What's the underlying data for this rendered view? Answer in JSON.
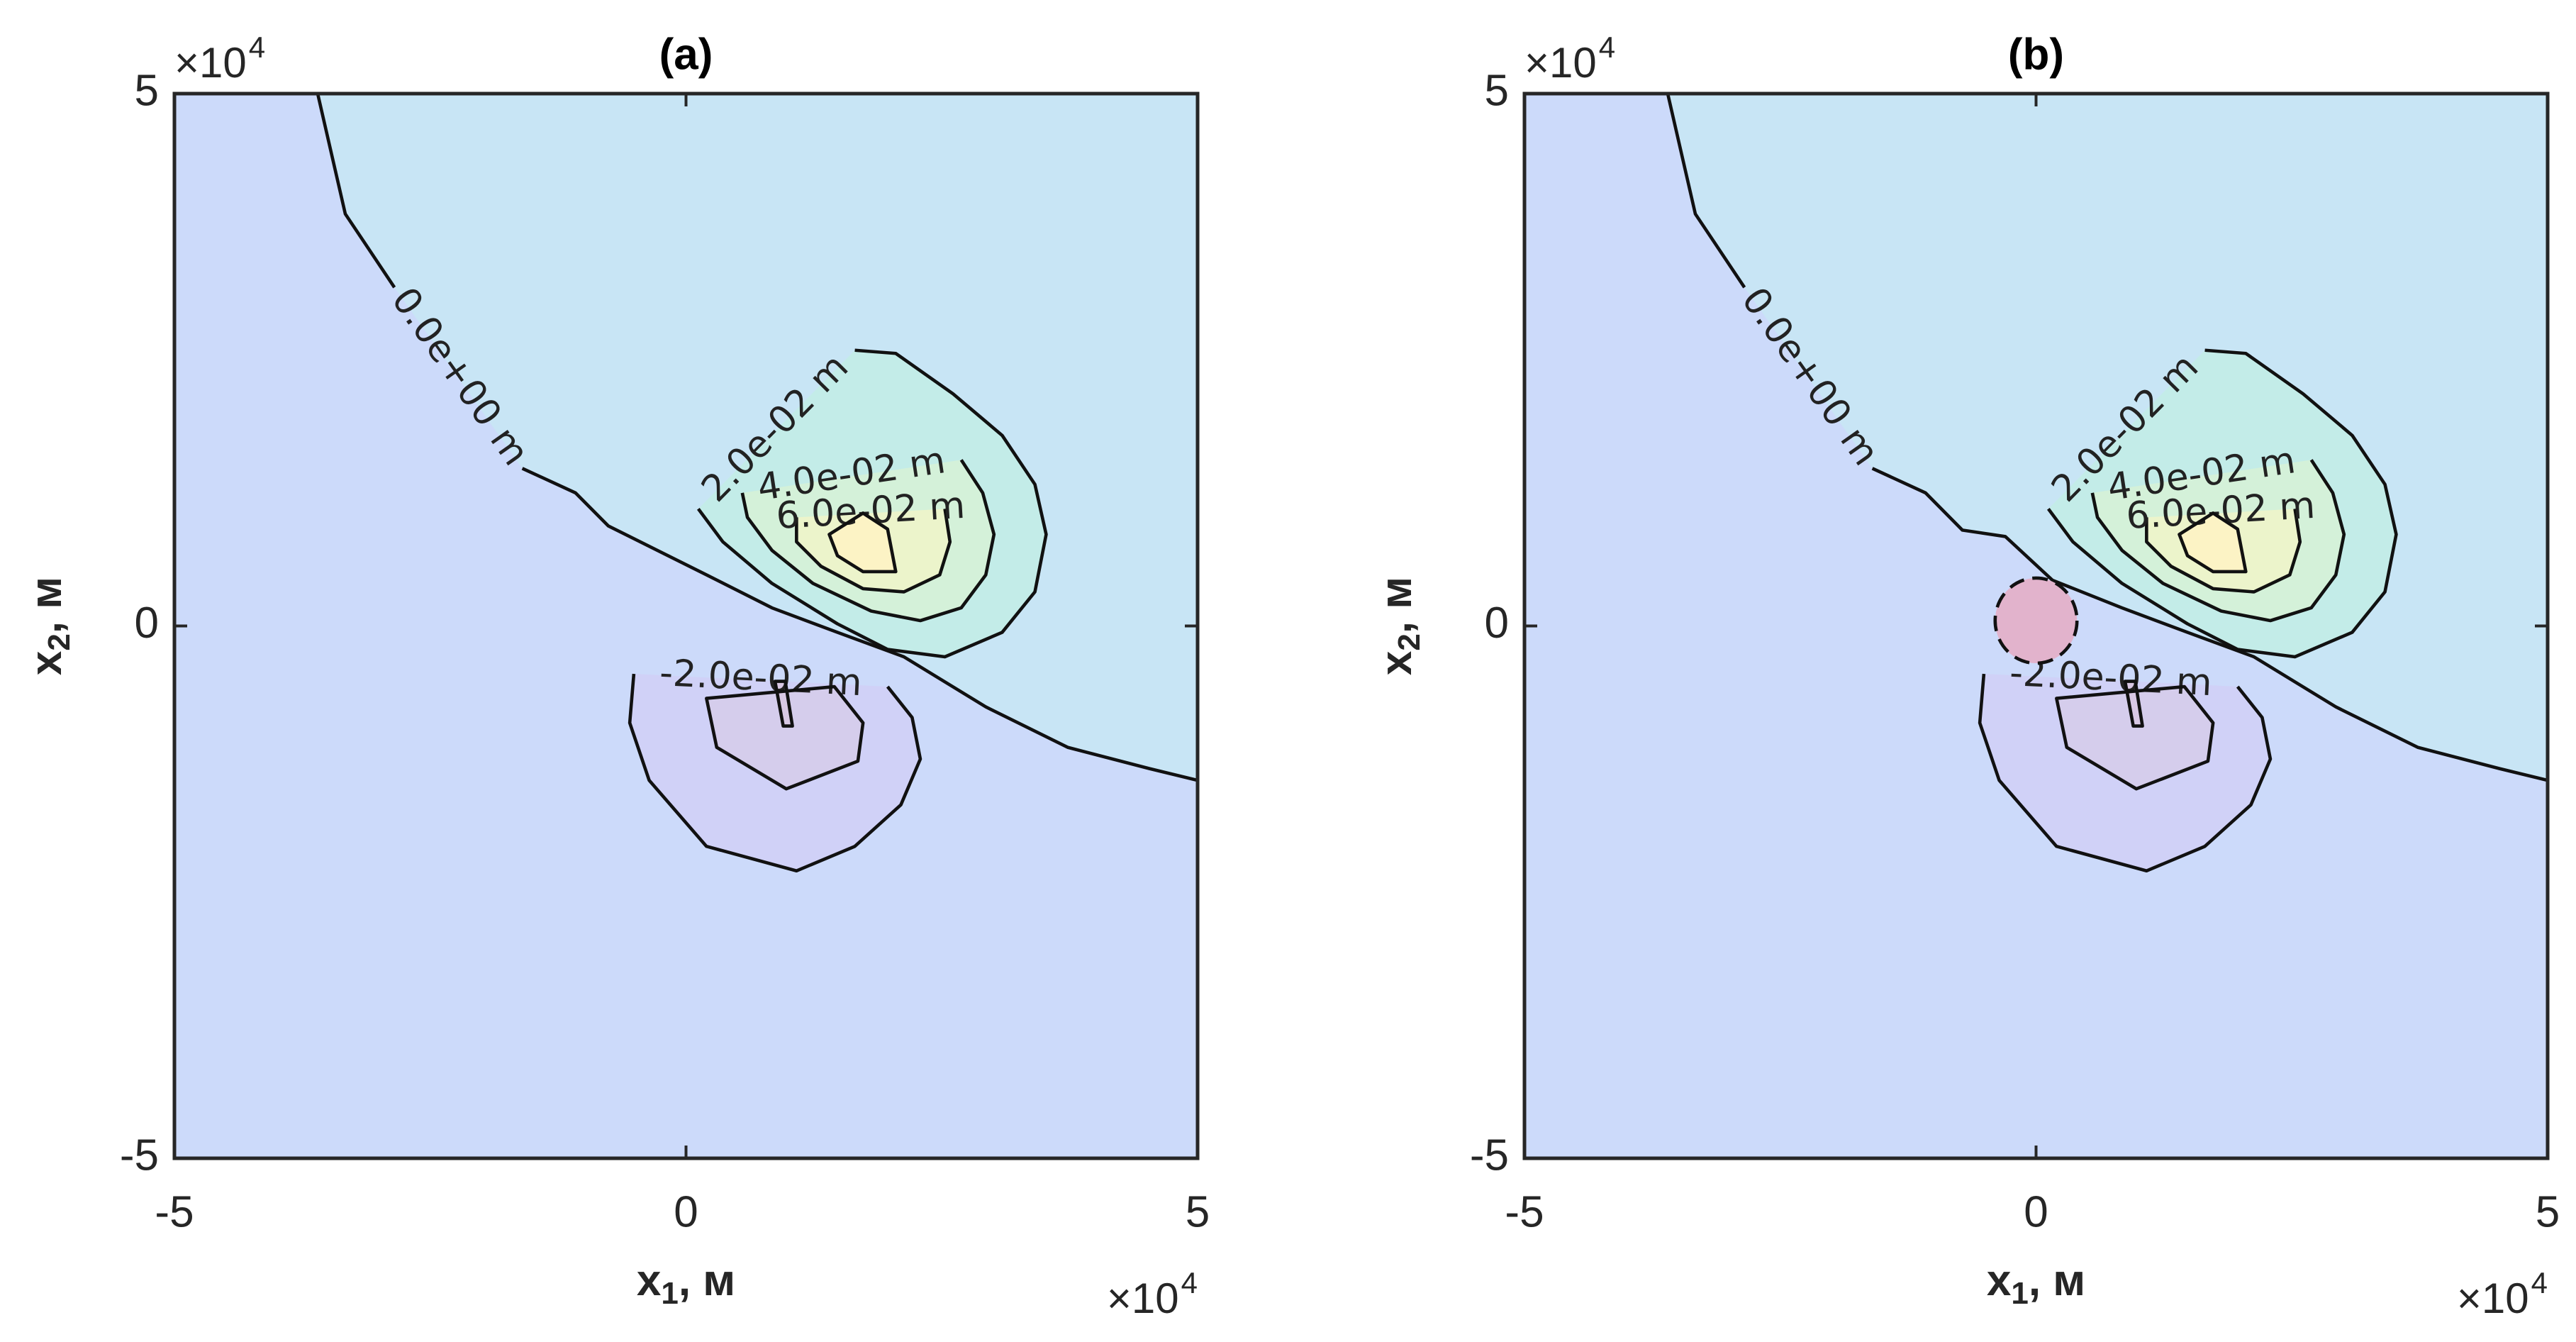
{
  "chart_data": [
    {
      "type": "contour",
      "title": "(a)",
      "xlabel": {
        "text": "x",
        "sub": "1",
        "rest": ", м"
      },
      "ylabel": {
        "text": "x",
        "sub": "2",
        "rest": ", м"
      },
      "x_multiplier": {
        "base": "×10",
        "power": "4"
      },
      "y_multiplier": {
        "base": "×10",
        "power": "4"
      },
      "xlim": [
        -50000,
        50000
      ],
      "ylim": [
        -50000,
        50000
      ],
      "xticks": [
        {
          "value": -50000,
          "label": "-5"
        },
        {
          "value": 0,
          "label": "0"
        },
        {
          "value": 50000,
          "label": "5"
        }
      ],
      "yticks": [
        {
          "value": -50000,
          "label": "-5"
        },
        {
          "value": 0,
          "label": "0"
        },
        {
          "value": 50000,
          "label": "5"
        }
      ],
      "background": "#ccdafa",
      "contours": [
        {
          "level": 0,
          "label": "0.0e+00 m",
          "shape": "open",
          "color": "#c8e5f5",
          "x": [
            -36000,
            -33300,
            -28500,
            null,
            -16000,
            -10800,
            -7600,
            -2800,
            2000,
            8400,
            14800,
            21300,
            29300,
            37300,
            45300,
            50000
          ],
          "y": [
            50000,
            38700,
            31800,
            null,
            14800,
            12500,
            9400,
            7100,
            4800,
            1700,
            -600,
            -2900,
            -7600,
            -11400,
            -13400,
            -14500
          ]
        },
        {
          "level": 0.02,
          "label": "2.0e-02 m",
          "shape": "loop",
          "color": "#c3ece8",
          "x": [
            16500,
            20500,
            26100,
            30900,
            34100,
            35200,
            34100,
            30900,
            25300,
            19700,
            14800,
            8400,
            3600,
            1200
          ],
          "y": [
            25900,
            25600,
            21800,
            17900,
            13300,
            8600,
            3200,
            -600,
            -2900,
            -2200,
            200,
            4000,
            7900,
            11000
          ]
        },
        {
          "level": 0.04,
          "label": "4.0e-02 m",
          "shape": "loop",
          "color": "#d4f1d9",
          "x": [
            26900,
            29000,
            30100,
            29300,
            26900,
            22900,
            18100,
            12400,
            8400,
            6000,
            5500
          ],
          "y": [
            15600,
            12500,
            8600,
            4800,
            1700,
            500,
            1400,
            4000,
            7100,
            10200,
            12500
          ]
        },
        {
          "level": 0.06,
          "label": "6.0e-02 m",
          "shape": "loop",
          "color": "#ecf4cb",
          "x": [
            25300,
            25800,
            24800,
            21300,
            17300,
            13200,
            10800,
            10800
          ],
          "y": [
            11000,
            7900,
            4800,
            3200,
            3500,
            5600,
            7900,
            10200
          ]
        },
        {
          "level": 0.08,
          "shape": "loop",
          "color": "#fcf3c5",
          "x": [
            14000,
            17300,
            19700,
            20500,
            17300,
            14800
          ],
          "y": [
            8600,
            10600,
            9100,
            5100,
            5100,
            6600
          ]
        },
        {
          "level": -0.02,
          "label": "-2.0e-02 m",
          "shape": "loop",
          "color": "#d0d1f7",
          "x": [
            19700,
            22100,
            22900,
            21000,
            16500,
            10800,
            2000,
            -3600,
            -5500,
            -5100
          ],
          "y": [
            -5700,
            -8600,
            -12500,
            -16800,
            -20700,
            -23000,
            -20700,
            -14500,
            -9100,
            -4500
          ]
        },
        {
          "level": -0.04,
          "shape": "loop",
          "color": "#d5cdec",
          "x": [
            2000,
            3000,
            9800,
            16800,
            17300,
            14500
          ],
          "y": [
            -6800,
            -11400,
            -15300,
            -12700,
            -9100,
            -5700
          ]
        },
        {
          "level": -0.06,
          "shape": "loop",
          "color": "#d8c8e4",
          "x": [
            8700,
            9700,
            10400,
            9500
          ],
          "y": [
            -5200,
            -5200,
            -9400,
            -9400
          ]
        }
      ]
    },
    {
      "type": "contour",
      "title": "(b)",
      "xlabel": {
        "text": "x",
        "sub": "1",
        "rest": ", м"
      },
      "ylabel": {
        "text": "x",
        "sub": "2",
        "rest": ", м"
      },
      "x_multiplier": {
        "base": "×10",
        "power": "4"
      },
      "y_multiplier": {
        "base": "×10",
        "power": "4"
      },
      "xlim": [
        -50000,
        50000
      ],
      "ylim": [
        -50000,
        50000
      ],
      "xticks": [
        {
          "value": -50000,
          "label": "-5"
        },
        {
          "value": 0,
          "label": "0"
        },
        {
          "value": 50000,
          "label": "5"
        }
      ],
      "yticks": [
        {
          "value": -50000,
          "label": "-5"
        },
        {
          "value": 0,
          "label": "0"
        },
        {
          "value": 50000,
          "label": "5"
        }
      ],
      "background": "#ccdafa",
      "contours": [
        {
          "level": 0,
          "label": "0.0e+00 m",
          "shape": "open",
          "color": "#c8e5f5",
          "x": [
            -36000,
            -33300,
            -28500,
            null,
            -16000,
            -10800,
            -7200,
            -3000,
            1600,
            8400,
            14800,
            21300,
            29300,
            37300,
            45300,
            50000
          ],
          "y": [
            50000,
            38700,
            31800,
            null,
            14800,
            12500,
            9000,
            8400,
            4300,
            1700,
            -600,
            -2900,
            -7600,
            -11400,
            -13400,
            -14500
          ]
        },
        {
          "level": 0.02,
          "label": "2.0e-02 m",
          "shape": "loop",
          "color": "#c3ece8",
          "x": [
            16500,
            20500,
            26100,
            30900,
            34100,
            35200,
            34100,
            30900,
            25300,
            19700,
            14800,
            8400,
            3600,
            1200
          ],
          "y": [
            25900,
            25600,
            21800,
            17900,
            13300,
            8600,
            3200,
            -600,
            -2900,
            -2200,
            200,
            4000,
            7900,
            11000
          ]
        },
        {
          "level": 0.04,
          "label": "4.0e-02 m",
          "shape": "loop",
          "color": "#d4f1d9",
          "x": [
            26900,
            29000,
            30100,
            29300,
            26900,
            22900,
            18100,
            12400,
            8400,
            6000,
            5500
          ],
          "y": [
            15600,
            12500,
            8600,
            4800,
            1700,
            500,
            1400,
            4000,
            7100,
            10200,
            12500
          ]
        },
        {
          "level": 0.06,
          "label": "6.0e-02 m",
          "shape": "loop",
          "color": "#ecf4cb",
          "x": [
            25300,
            25800,
            24800,
            21300,
            17300,
            13200,
            10800,
            10800
          ],
          "y": [
            11000,
            7900,
            4800,
            3200,
            3500,
            5600,
            7900,
            10200
          ]
        },
        {
          "level": 0.08,
          "shape": "loop",
          "color": "#fcf3c5",
          "x": [
            14000,
            17300,
            19700,
            20500,
            17300,
            14800
          ],
          "y": [
            8600,
            10600,
            9100,
            5100,
            5100,
            6600
          ]
        },
        {
          "level": -0.02,
          "label": "-2.0e-02 m",
          "shape": "loop",
          "color": "#d0d1f7",
          "x": [
            19700,
            22100,
            22900,
            21000,
            16500,
            10800,
            2000,
            -3600,
            -5500,
            -5100
          ],
          "y": [
            -5700,
            -8600,
            -12500,
            -16800,
            -20700,
            -23000,
            -20700,
            -14500,
            -9100,
            -4500
          ]
        },
        {
          "level": -0.04,
          "shape": "loop",
          "color": "#d5cdec",
          "x": [
            2000,
            3000,
            9800,
            16800,
            17300,
            14500
          ],
          "y": [
            -6800,
            -11400,
            -15300,
            -12700,
            -9100,
            -5700
          ]
        },
        {
          "level": -0.06,
          "shape": "loop",
          "color": "#d8c8e4",
          "x": [
            8700,
            9700,
            10400,
            9500
          ],
          "y": [
            -5200,
            -5200,
            -9400,
            -9400
          ]
        }
      ],
      "circle": {
        "x": 0,
        "y": 500,
        "radius": 4000,
        "color": "#e2b3cc",
        "linestyle": "dashed"
      }
    }
  ]
}
